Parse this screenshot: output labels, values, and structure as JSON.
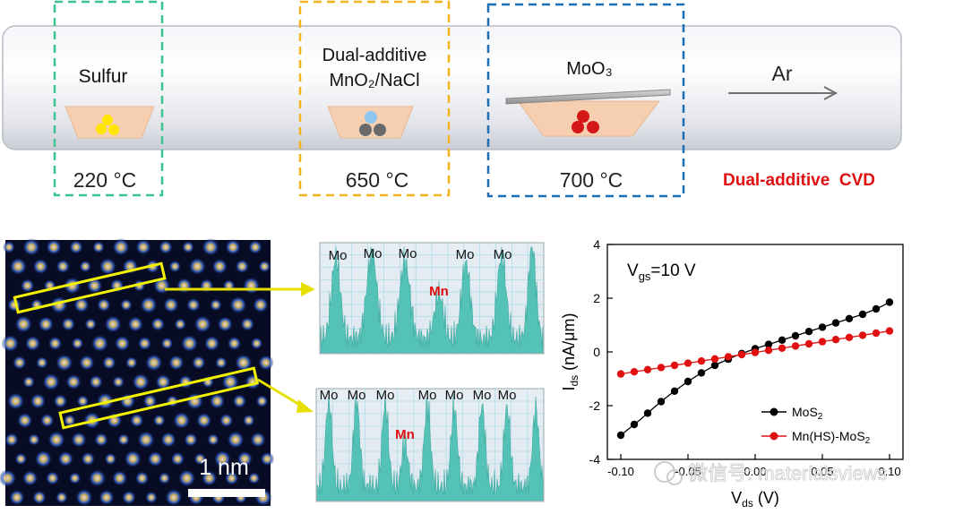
{
  "furnace": {
    "zones": [
      {
        "label": "Sulfur",
        "temperature": "220 °C",
        "color": "#3cc48f"
      },
      {
        "label_line1": "Dual-additive",
        "label_line2": "MnO₂/NaCl",
        "temperature": "650 °C",
        "color": "#f2b51d"
      },
      {
        "label": "MoO₃",
        "temperature": "700 °C",
        "color": "#1a6fb4"
      }
    ],
    "gas": "Ar",
    "method": "Dual-additive  CVD",
    "method_color": "#e01010"
  },
  "stem": {
    "scale_bar": "1 nm"
  },
  "profiles": [
    {
      "peaks": [
        "Mo",
        "Mo",
        "Mo",
        "Mo",
        "Mo"
      ],
      "dopant": "Mn"
    },
    {
      "peaks": [
        "Mo",
        "Mo",
        "Mo",
        "Mo",
        "Mo",
        "Mo",
        "Mo"
      ],
      "dopant": "Mn"
    }
  ],
  "chart_data": {
    "type": "line",
    "annotation": "V_gs = 10 V",
    "xlabel": "V_ds (V)",
    "ylabel": "I_ds (nA/μm)",
    "xlim": [
      -0.11,
      0.11
    ],
    "ylim": [
      -4,
      4
    ],
    "yticks": [
      -4,
      -2,
      0,
      2,
      4
    ],
    "xticks": [
      -0.1,
      -0.05,
      0.0,
      0.05,
      0.1
    ],
    "xtick_labels": [
      "-0.10",
      "-0.05",
      "0.00",
      "0.05",
      "0.10"
    ],
    "legend_position": "bottom-right",
    "series": [
      {
        "name": "MoS₂",
        "color": "#000000",
        "x": [
          -0.1,
          -0.095,
          -0.09,
          -0.085,
          -0.08,
          -0.075,
          -0.07,
          -0.065,
          -0.06,
          -0.055,
          -0.05,
          -0.045,
          -0.04,
          -0.035,
          -0.03,
          -0.025,
          -0.02,
          -0.015,
          -0.01,
          -0.005,
          0.0,
          0.005,
          0.01,
          0.015,
          0.02,
          0.025,
          0.03,
          0.035,
          0.04,
          0.045,
          0.05,
          0.055,
          0.06,
          0.065,
          0.07,
          0.075,
          0.08,
          0.085,
          0.09,
          0.095,
          0.1
        ],
        "y": [
          -3.1,
          -2.9,
          -2.7,
          -2.5,
          -2.28,
          -2.06,
          -1.85,
          -1.65,
          -1.46,
          -1.28,
          -1.1,
          -0.94,
          -0.78,
          -0.64,
          -0.5,
          -0.38,
          -0.27,
          -0.16,
          -0.06,
          0.03,
          0.12,
          0.2,
          0.28,
          0.36,
          0.44,
          0.52,
          0.6,
          0.68,
          0.76,
          0.84,
          0.92,
          1.0,
          1.08,
          1.16,
          1.24,
          1.32,
          1.4,
          1.5,
          1.6,
          1.72,
          1.85
        ]
      },
      {
        "name": "Mn(HS)-MoS₂",
        "color": "#e01010",
        "x": [
          -0.1,
          -0.095,
          -0.09,
          -0.085,
          -0.08,
          -0.075,
          -0.07,
          -0.065,
          -0.06,
          -0.055,
          -0.05,
          -0.045,
          -0.04,
          -0.035,
          -0.03,
          -0.025,
          -0.02,
          -0.015,
          -0.01,
          -0.005,
          0.0,
          0.005,
          0.01,
          0.015,
          0.02,
          0.025,
          0.03,
          0.035,
          0.04,
          0.045,
          0.05,
          0.055,
          0.06,
          0.065,
          0.07,
          0.075,
          0.08,
          0.085,
          0.09,
          0.095,
          0.1
        ],
        "y": [
          -0.82,
          -0.78,
          -0.74,
          -0.7,
          -0.66,
          -0.62,
          -0.58,
          -0.54,
          -0.5,
          -0.46,
          -0.42,
          -0.38,
          -0.34,
          -0.3,
          -0.26,
          -0.22,
          -0.18,
          -0.14,
          -0.1,
          -0.06,
          -0.02,
          0.02,
          0.06,
          0.1,
          0.14,
          0.18,
          0.22,
          0.26,
          0.3,
          0.34,
          0.38,
          0.42,
          0.46,
          0.5,
          0.54,
          0.58,
          0.62,
          0.66,
          0.7,
          0.74,
          0.78
        ]
      }
    ]
  },
  "watermark": "微信号: materialsviews"
}
